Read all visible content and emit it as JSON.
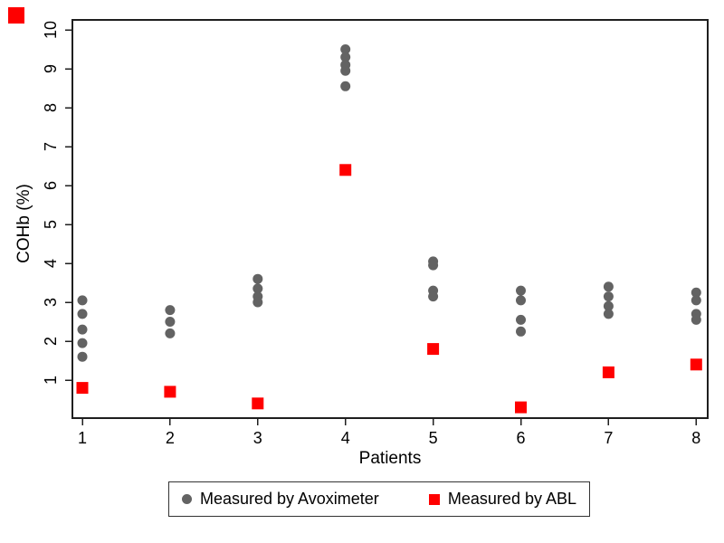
{
  "chart_data": {
    "type": "scatter",
    "title": "",
    "xlabel": "Patients",
    "ylabel": "COHb (%)",
    "x_ticks": [
      1,
      2,
      3,
      4,
      5,
      6,
      7,
      8
    ],
    "y_ticks": [
      1,
      2,
      3,
      4,
      5,
      6,
      7,
      8,
      9,
      10
    ],
    "xlim": [
      0.9,
      8.1
    ],
    "ylim": [
      0,
      10.3
    ],
    "grid": false,
    "legend_position": "bottom",
    "background_color": "#ffffff",
    "frame_color": "#1f1f1f",
    "categories": [
      1,
      2,
      3,
      4,
      5,
      6,
      7,
      8
    ],
    "series": [
      {
        "name": "Measured by Avoximeter",
        "marker": "circle",
        "color": "#636363",
        "values_by_patient": [
          [
            3.05,
            2.7,
            2.3,
            1.95,
            1.6
          ],
          [
            2.8,
            2.5,
            2.2
          ],
          [
            3.6,
            3.35,
            3.15,
            3.0
          ],
          [
            9.5,
            9.3,
            9.1,
            8.95,
            8.55
          ],
          [
            4.05,
            3.95,
            3.3,
            3.15
          ],
          [
            3.3,
            3.05,
            2.55,
            2.25
          ],
          [
            3.4,
            3.15,
            2.9,
            2.7
          ],
          [
            3.25,
            3.05,
            2.7,
            2.55
          ]
        ]
      },
      {
        "name": "Measured by ABL",
        "marker": "square",
        "color": "#ff0000",
        "values_by_patient": [
          [
            0.8
          ],
          [
            0.7
          ],
          [
            0.4
          ],
          [
            6.4
          ],
          [
            1.8
          ],
          [
            0.3
          ],
          [
            1.2
          ],
          [
            1.4
          ]
        ]
      }
    ],
    "corner_marker_color": "#fe0000"
  }
}
